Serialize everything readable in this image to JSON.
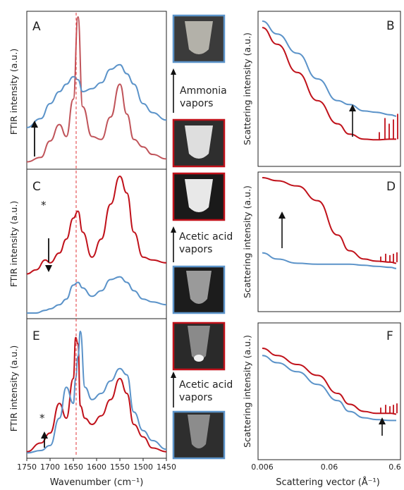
{
  "colors": {
    "red": "#c0111a",
    "blue": "#5b93c9",
    "red_light": "#c0545a",
    "dashed": "#e0353a"
  },
  "ftir_axis": {
    "xlabel": "Wavenumber (cm⁻¹)",
    "ylabel": "FTIR intensity (a.u.)",
    "ticks": [
      "1750",
      "1700",
      "1650",
      "1600",
      "1550",
      "1500",
      "1450"
    ],
    "xlim": [
      1750,
      1450
    ],
    "reference_line": 1640
  },
  "saxs_axis": {
    "xlabel": "Scattering vector (Å⁻¹)",
    "ylabel": "Scattering intensity (a.u.)",
    "ticks": [
      "0.006",
      "0.06",
      "0.6"
    ],
    "scale": "log"
  },
  "middle": [
    {
      "caption": [
        "Ammonia",
        "vapors"
      ],
      "top_frame": "blue",
      "bottom_frame": "red",
      "top_photo": "tube-clear",
      "bottom_photo": "tube-white"
    },
    {
      "caption": [
        "Acetic acid",
        "vapors"
      ],
      "top_frame": "red",
      "bottom_frame": "blue",
      "top_photo": "tube-white",
      "bottom_photo": "tube-clear"
    },
    {
      "caption": [
        "Acetic acid",
        "vapors"
      ],
      "top_frame": "red",
      "bottom_frame": "blue",
      "top_photo": "tube-white-small",
      "bottom_photo": "tube-clear-small"
    }
  ],
  "chart_data": [
    {
      "panel": "A",
      "type": "line",
      "ylabel": "FTIR intensity (a.u.)",
      "x": [
        1750,
        1720,
        1700,
        1680,
        1665,
        1650,
        1640,
        1630,
        1610,
        1590,
        1570,
        1550,
        1535,
        1520,
        1500,
        1480,
        1450
      ],
      "series": [
        {
          "color": "red",
          "values": [
            0.03,
            0.06,
            0.17,
            0.28,
            0.2,
            0.45,
            1.0,
            0.4,
            0.2,
            0.18,
            0.33,
            0.55,
            0.35,
            0.18,
            0.13,
            0.08,
            0.05
          ]
        },
        {
          "color": "blue",
          "values": [
            0.26,
            0.32,
            0.42,
            0.5,
            0.55,
            0.6,
            0.58,
            0.5,
            0.52,
            0.56,
            0.65,
            0.68,
            0.62,
            0.55,
            0.42,
            0.36,
            0.31
          ]
        }
      ]
    },
    {
      "panel": "B",
      "type": "line",
      "scale": "log",
      "ylabel": "Scattering intensity (a.u.)",
      "x": [
        0.006,
        0.01,
        0.02,
        0.04,
        0.08,
        0.12,
        0.2,
        0.3,
        0.5,
        0.6
      ],
      "series": [
        {
          "color": "blue",
          "values": [
            1.0,
            0.9,
            0.75,
            0.55,
            0.38,
            0.35,
            0.3,
            0.29,
            0.27,
            0.26
          ]
        },
        {
          "color": "red",
          "values": [
            0.95,
            0.82,
            0.6,
            0.38,
            0.2,
            0.12,
            0.08,
            0.075,
            0.08,
            0.08
          ]
        }
      ]
    },
    {
      "panel": "C",
      "type": "line",
      "ylabel": "FTIR intensity (a.u.)",
      "x": [
        1750,
        1730,
        1710,
        1700,
        1680,
        1665,
        1650,
        1640,
        1630,
        1610,
        1590,
        1570,
        1550,
        1535,
        1520,
        1500,
        1480,
        1450
      ],
      "series": [
        {
          "color": "red",
          "values": [
            0.3,
            0.33,
            0.4,
            0.38,
            0.45,
            0.55,
            0.7,
            0.75,
            0.6,
            0.42,
            0.55,
            0.8,
            1.0,
            0.88,
            0.6,
            0.42,
            0.4,
            0.38
          ]
        },
        {
          "color": "blue",
          "values": [
            0.02,
            0.02,
            0.04,
            0.05,
            0.08,
            0.12,
            0.22,
            0.24,
            0.2,
            0.14,
            0.18,
            0.26,
            0.28,
            0.24,
            0.18,
            0.12,
            0.1,
            0.08
          ]
        }
      ]
    },
    {
      "panel": "D",
      "type": "line",
      "scale": "log",
      "ylabel": "Scattering intensity (a.u.)",
      "x": [
        0.006,
        0.01,
        0.02,
        0.04,
        0.08,
        0.12,
        0.2,
        0.3,
        0.5,
        0.6
      ],
      "series": [
        {
          "color": "red",
          "values": [
            1.0,
            0.97,
            0.92,
            0.78,
            0.45,
            0.3,
            0.22,
            0.2,
            0.19,
            0.18
          ]
        },
        {
          "color": "blue",
          "values": [
            0.28,
            0.22,
            0.18,
            0.17,
            0.17,
            0.17,
            0.16,
            0.15,
            0.14,
            0.13
          ]
        }
      ]
    },
    {
      "panel": "E",
      "type": "line",
      "ylabel": "FTIR intensity (a.u.)",
      "x": [
        1750,
        1720,
        1700,
        1680,
        1665,
        1650,
        1645,
        1640,
        1635,
        1625,
        1610,
        1590,
        1570,
        1550,
        1535,
        1520,
        1500,
        1480,
        1450
      ],
      "series": [
        {
          "color": "red",
          "values": [
            0.03,
            0.1,
            0.18,
            0.42,
            0.3,
            0.62,
            0.95,
            0.9,
            0.4,
            0.3,
            0.25,
            0.32,
            0.45,
            0.62,
            0.5,
            0.25,
            0.15,
            0.06,
            0.03
          ]
        },
        {
          "color": "blue",
          "values": [
            0.02,
            0.04,
            0.08,
            0.3,
            0.55,
            0.42,
            0.62,
            0.8,
            1.0,
            0.55,
            0.45,
            0.5,
            0.6,
            0.7,
            0.65,
            0.35,
            0.2,
            0.12,
            0.05
          ]
        }
      ]
    },
    {
      "panel": "F",
      "type": "line",
      "scale": "log",
      "ylabel": "Scattering intensity (a.u.)",
      "x": [
        0.006,
        0.01,
        0.02,
        0.04,
        0.08,
        0.12,
        0.2,
        0.3,
        0.5,
        0.6
      ],
      "series": [
        {
          "color": "red",
          "values": [
            1.0,
            0.92,
            0.82,
            0.7,
            0.5,
            0.38,
            0.3,
            0.28,
            0.28,
            0.27
          ]
        },
        {
          "color": "blue",
          "values": [
            0.92,
            0.84,
            0.74,
            0.6,
            0.42,
            0.3,
            0.23,
            0.21,
            0.2,
            0.2
          ]
        }
      ]
    }
  ]
}
